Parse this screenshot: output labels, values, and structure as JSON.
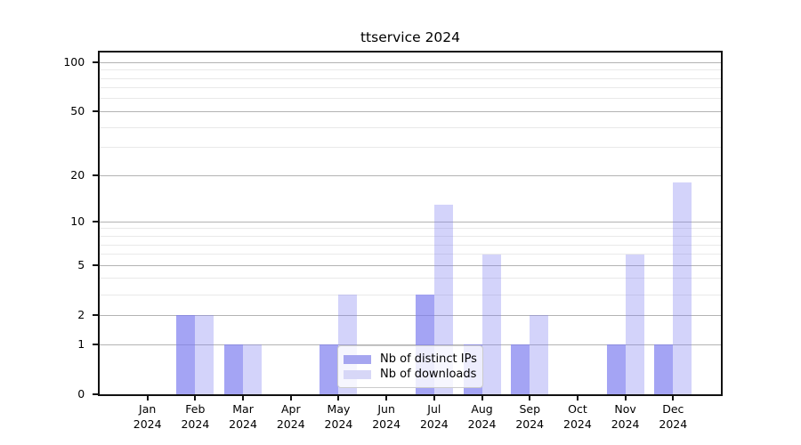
{
  "chart_data": {
    "type": "bar",
    "title": "ttservice 2024",
    "categories": [
      "Jan",
      "Feb",
      "Mar",
      "Apr",
      "May",
      "Jun",
      "Jul",
      "Aug",
      "Sep",
      "Oct",
      "Nov",
      "Dec"
    ],
    "year_label": "2024",
    "series": [
      {
        "name": "Nb of distinct IPs",
        "bar_color": "rgba(125,125,240,0.70)",
        "legend_color": "#a6a6f0",
        "values": [
          0,
          2,
          1,
          0,
          1,
          0,
          3,
          1,
          1,
          0,
          1,
          1
        ]
      },
      {
        "name": "Nb of downloads",
        "bar_color": "rgba(125,125,240,0.34)",
        "legend_color": "#d7d7f7",
        "values": [
          0,
          2,
          1,
          0,
          3,
          0,
          13,
          6,
          2,
          0,
          6,
          18
        ]
      }
    ],
    "yscale": "log1p",
    "ylim": [
      0,
      115
    ],
    "yticks": [
      0,
      1,
      2,
      5,
      10,
      20,
      50,
      100
    ],
    "minor_yticks": [
      3,
      4,
      6,
      7,
      8,
      9,
      30,
      40,
      60,
      70,
      80,
      90
    ],
    "grid": true,
    "legend_position": "lower center"
  },
  "colors": {
    "major_grid": "#b3b3b3",
    "minor_grid": "#e9e9e9",
    "spine": "#111111",
    "background": "#ffffff"
  }
}
